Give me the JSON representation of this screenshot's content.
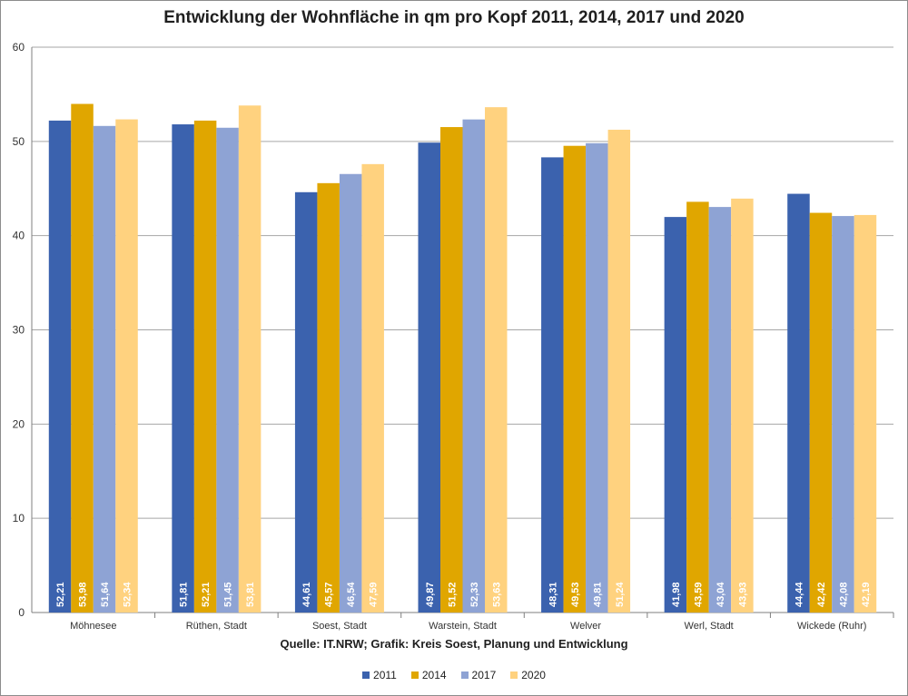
{
  "chart_data": {
    "type": "bar",
    "title": "Entwicklung der Wohnfläche in qm pro Kopf 2011, 2014, 2017 und 2020",
    "source": "Quelle: IT.NRW; Grafik: Kreis Soest, Planung und Entwicklung",
    "categories": [
      "Möhnesee",
      "Rüthen, Stadt",
      "Soest, Stadt",
      "Warstein, Stadt",
      "Welver",
      "Werl, Stadt",
      "Wickede (Ruhr)"
    ],
    "series": [
      {
        "name": "2011",
        "color": "#3b62ae",
        "values": [
          52.21,
          51.81,
          44.61,
          49.87,
          48.31,
          41.98,
          44.44
        ],
        "labels": [
          "52,21",
          "51,81",
          "44,61",
          "49,87",
          "48,31",
          "41,98",
          "44,44"
        ]
      },
      {
        "name": "2014",
        "color": "#e0a600",
        "values": [
          53.98,
          52.21,
          45.57,
          51.52,
          49.53,
          43.59,
          42.42
        ],
        "labels": [
          "53,98",
          "52,21",
          "45,57",
          "51,52",
          "49,53",
          "43,59",
          "42,42"
        ]
      },
      {
        "name": "2017",
        "color": "#8ea3d4",
        "values": [
          51.64,
          51.45,
          46.54,
          52.33,
          49.81,
          43.04,
          42.08
        ],
        "labels": [
          "51,64",
          "51,45",
          "46,54",
          "52,33",
          "49,81",
          "43,04",
          "42,08"
        ]
      },
      {
        "name": "2020",
        "color": "#ffd27f",
        "values": [
          52.34,
          53.81,
          47.59,
          53.63,
          51.24,
          43.93,
          42.19
        ],
        "labels": [
          "52,34",
          "53,81",
          "47,59",
          "53,63",
          "51,24",
          "43,93",
          "42,19"
        ]
      }
    ],
    "yticks": [
      "0",
      "10",
      "20",
      "30",
      "40",
      "50",
      "60"
    ],
    "ylim": [
      0,
      60
    ],
    "grid": true,
    "legend_position": "bottom"
  }
}
